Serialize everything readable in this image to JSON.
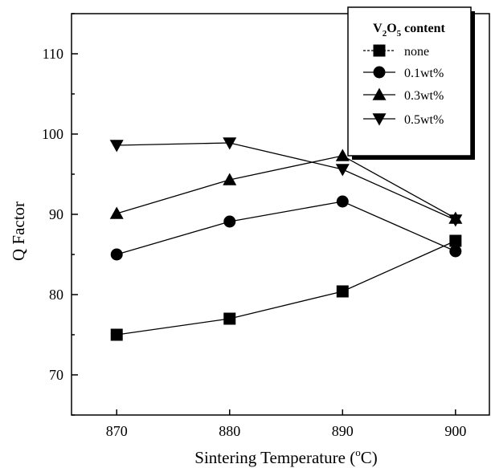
{
  "chart_data": {
    "type": "line",
    "title": "",
    "xlabel": "Sintering Temperature (",
    "xlabel_sup": "o",
    "xlabel_end": "C)",
    "ylabel": "Q Factor",
    "x": [
      870,
      880,
      890,
      900
    ],
    "xlim": [
      866,
      903
    ],
    "ylim": [
      65,
      115
    ],
    "xticks": [
      870,
      880,
      890,
      900
    ],
    "yticks": [
      70,
      80,
      90,
      100,
      110
    ],
    "legend": {
      "title_prefix": "V",
      "title_sub1": "2",
      "title_mid": "O",
      "title_sub2": "5",
      "title_suffix": " content",
      "placement": "top-right"
    },
    "series": [
      {
        "name": "none",
        "marker": "square",
        "values": [
          75.0,
          77.0,
          80.4,
          86.7
        ]
      },
      {
        "name": "0.1wt%",
        "marker": "circle",
        "values": [
          85.0,
          89.1,
          91.6,
          85.4
        ]
      },
      {
        "name": "0.3wt%",
        "marker": "triangle-up",
        "values": [
          90.1,
          94.3,
          97.3,
          89.5
        ]
      },
      {
        "name": "0.5wt%",
        "marker": "triangle-down",
        "values": [
          98.6,
          98.9,
          95.6,
          89.3
        ]
      }
    ]
  }
}
